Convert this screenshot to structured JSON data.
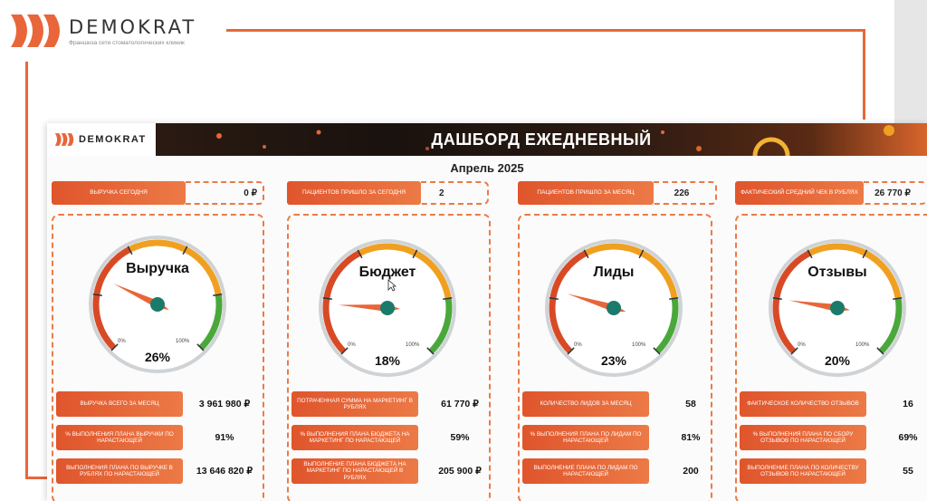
{
  "top": {
    "brand": "DEMOKRAT",
    "subtitle": "Франшиза сети стоматологических клиник"
  },
  "dashboard": {
    "logo_brand": "DEMOKRAT",
    "title": "ДАШБОРД ЕЖЕДНЕВНЫЙ",
    "period": "Апрель 2025",
    "colors": {
      "accent": "#e8663a",
      "gauge_red": "#d84a26",
      "gauge_orange": "#f0a020",
      "gauge_green": "#4aa83a",
      "needle": "#e8663a",
      "hub": "#1c7a6a"
    },
    "kpis": [
      {
        "label": "Выручка сегодня",
        "value": "0 ₽"
      },
      {
        "label": "Пациентов пришло за сегодня",
        "value": "2"
      },
      {
        "label": "Пациентов пришло за месяц",
        "value": "226"
      },
      {
        "label": "Фактический средний чек в рублях",
        "value": "26 770 ₽"
      }
    ],
    "gauges": [
      {
        "title": "Выручка",
        "percent_label": "26%",
        "value": 0.26,
        "min": "0%",
        "max": "100%"
      },
      {
        "title": "Бюджет",
        "percent_label": "18%",
        "value": 0.18,
        "min": "0%",
        "max": "100%"
      },
      {
        "title": "Лиды",
        "percent_label": "23%",
        "value": 0.23,
        "min": "0%",
        "max": "100%"
      },
      {
        "title": "Отзывы",
        "percent_label": "20%",
        "value": 0.2,
        "min": "0%",
        "max": "100%"
      }
    ],
    "metrics": [
      [
        {
          "label": "Выручка всего за месяц",
          "value": "3 961 980 ₽"
        },
        {
          "label": "% выполнения плана выручки по нарастающей",
          "value": "91%"
        },
        {
          "label": "Выполнения плана по выручке в рублях по нарастающей",
          "value": "13 646 820 ₽"
        }
      ],
      [
        {
          "label": "Потраченная сумма на маркетинг в рублях",
          "value": "61 770 ₽"
        },
        {
          "label": "% выполнения плана бюджета на маркетинг по нарастающей",
          "value": "59%"
        },
        {
          "label": "Выполнение плана бюджета на маркетинг по нарастающей в рублях",
          "value": "205 900 ₽"
        }
      ],
      [
        {
          "label": "Количество лидов за месяц",
          "value": "58"
        },
        {
          "label": "% выполнения плана по лидам по нарастающей",
          "value": "81%"
        },
        {
          "label": "Выполнение плана по лидам по нарастающей",
          "value": "200"
        }
      ],
      [
        {
          "label": "Фактическое количество отзывов",
          "value": "16"
        },
        {
          "label": "% выполнения плана по сбору отзывов по нарастающей",
          "value": "69%"
        },
        {
          "label": "Выполнение плана по количеству отзывов по нарастающей",
          "value": "55"
        }
      ]
    ]
  }
}
